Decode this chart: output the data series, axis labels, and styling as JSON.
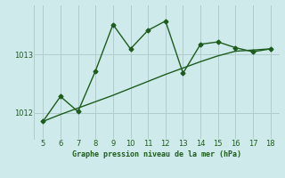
{
  "x": [
    5,
    6,
    7,
    8,
    9,
    10,
    11,
    12,
    13,
    14,
    15,
    16,
    17,
    18
  ],
  "y_zigzag": [
    1011.85,
    1012.28,
    1012.02,
    1012.72,
    1013.52,
    1013.1,
    1013.42,
    1013.58,
    1012.68,
    1013.18,
    1013.22,
    1013.12,
    1013.05,
    1013.1
  ],
  "y_trend": [
    1011.85,
    1011.97,
    1012.08,
    1012.19,
    1012.3,
    1012.42,
    1012.54,
    1012.66,
    1012.77,
    1012.88,
    1012.98,
    1013.06,
    1013.08,
    1013.1
  ],
  "line_color": "#1e5c1e",
  "bg_color": "#ceeaea",
  "grid_color": "#b0cccc",
  "xlabel": "Graphe pression niveau de la mer (hPa)",
  "xlabel_color": "#1e5c1e",
  "tick_color": "#1e5c1e",
  "yticks": [
    1012,
    1013
  ],
  "ylim": [
    1011.55,
    1013.85
  ],
  "xlim": [
    4.5,
    18.5
  ],
  "xticks": [
    5,
    6,
    7,
    8,
    9,
    10,
    11,
    12,
    13,
    14,
    15,
    16,
    17,
    18
  ],
  "marker": "D",
  "markersize": 2.5,
  "linewidth": 1.0
}
